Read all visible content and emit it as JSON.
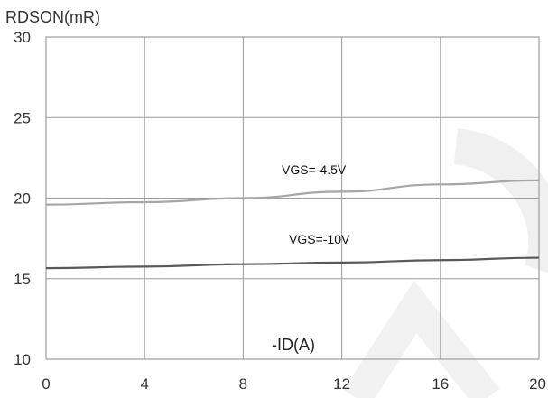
{
  "chart_data": {
    "type": "line",
    "ylabel": "RDSON(mR)",
    "xlabel": "-ID(A)",
    "xlim": [
      0,
      20
    ],
    "ylim": [
      10,
      30
    ],
    "xticks": [
      "0",
      "4",
      "8",
      "12",
      "16",
      "20"
    ],
    "yticks": [
      "10",
      "15",
      "20",
      "25",
      "30"
    ],
    "grid": true,
    "series": [
      {
        "name": "VGS=-4.5V",
        "color": "#a6a6a6",
        "x": [
          0,
          4,
          8,
          12,
          16,
          20
        ],
        "y": [
          19.6,
          19.75,
          20.0,
          20.4,
          20.85,
          21.1
        ]
      },
      {
        "name": "VGS=-10V",
        "color": "#595959",
        "x": [
          0,
          4,
          8,
          12,
          16,
          20
        ],
        "y": [
          15.65,
          15.75,
          15.9,
          16.0,
          16.15,
          16.3
        ]
      }
    ]
  }
}
